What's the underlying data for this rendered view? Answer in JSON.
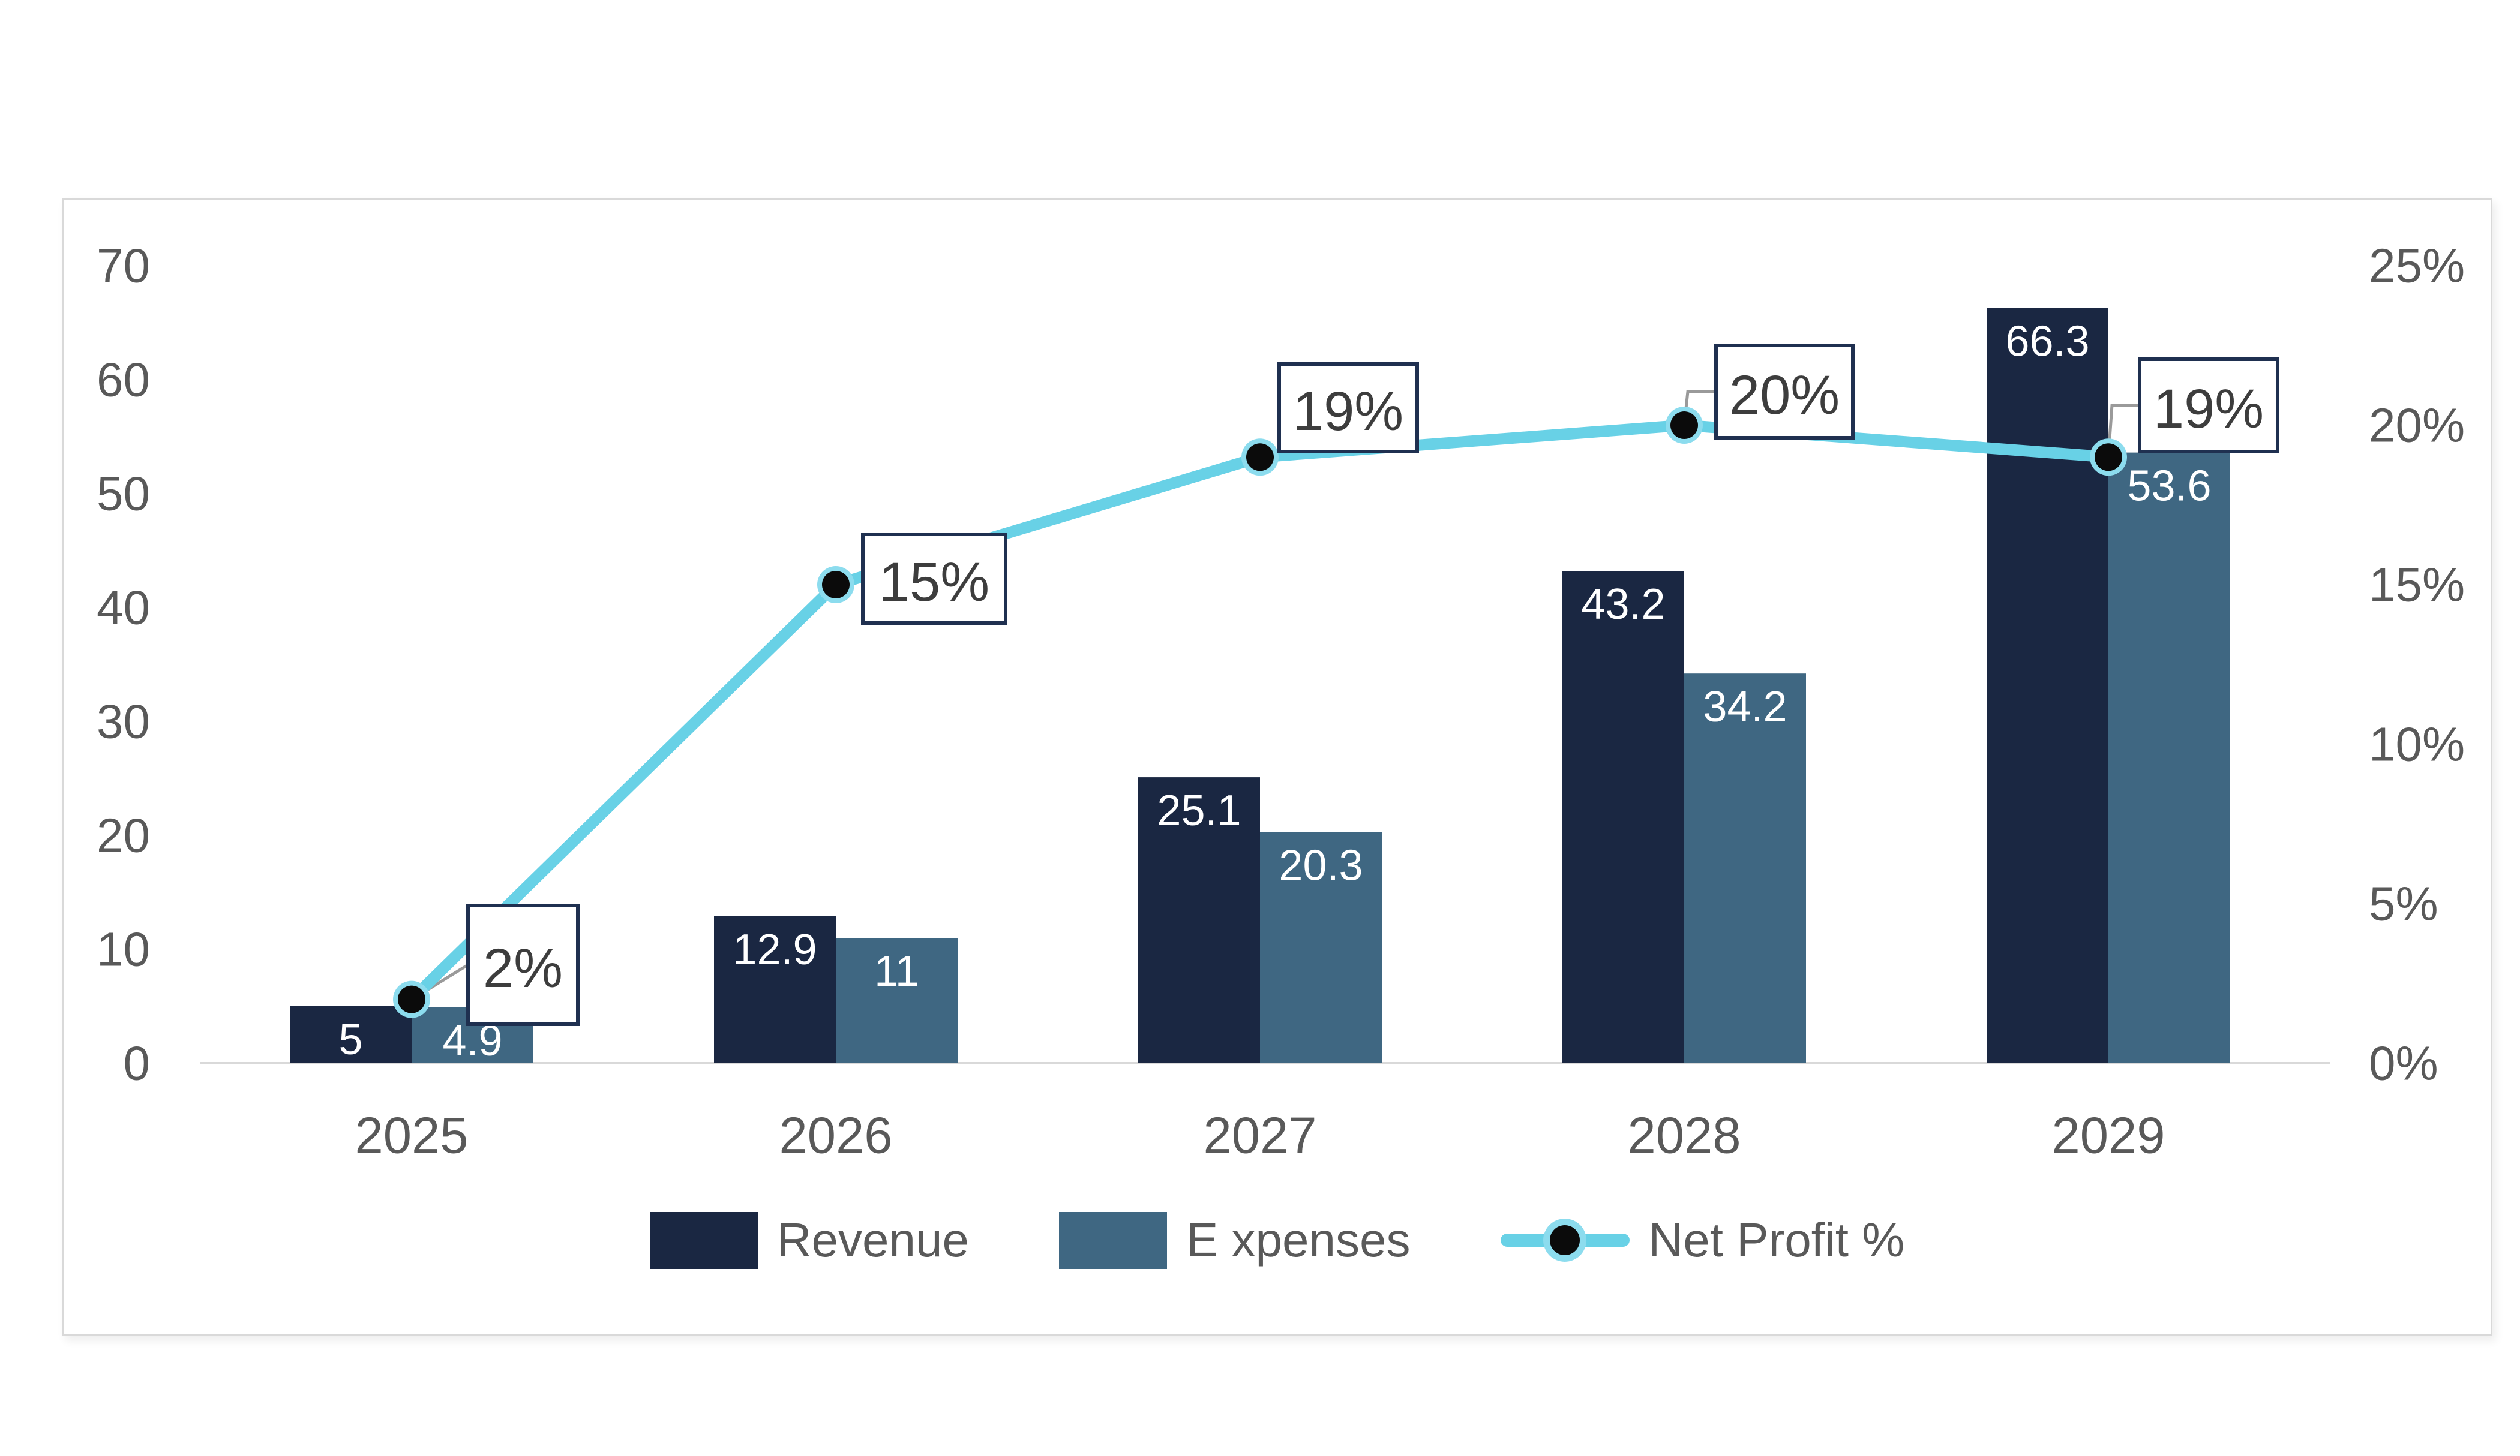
{
  "chart_data": {
    "type": "combo",
    "title": "",
    "categories": [
      "2025",
      "2026",
      "2027",
      "2028",
      "2029"
    ],
    "series": [
      {
        "id": "revenue",
        "name": "Revenue",
        "type": "bar",
        "axis": "left",
        "color": "#1A2742",
        "values": [
          5,
          12.9,
          25.1,
          43.2,
          66.3
        ],
        "data_labels": [
          "5",
          "12.9",
          "25.1",
          "43.2",
          "66.3"
        ]
      },
      {
        "id": "expenses",
        "name": "E xpenses",
        "type": "bar",
        "axis": "left",
        "color": "#3F6782",
        "values": [
          4.9,
          11,
          20.3,
          34.2,
          53.6
        ],
        "data_labels": [
          "4.9",
          "11",
          "20.3",
          "34.2",
          "53.6"
        ]
      },
      {
        "id": "net-profit",
        "name": "Net Profit %",
        "type": "line",
        "axis": "right",
        "color": "#68D1E6",
        "marker_color": "#0B0B0B",
        "values": [
          2,
          15,
          19,
          20,
          19
        ],
        "data_labels": [
          "2%",
          "15%",
          "19%",
          "20%",
          "19%"
        ]
      }
    ],
    "left_axis": {
      "min": 0,
      "max": 70,
      "ticks": [
        "70",
        "60",
        "50",
        "40",
        "30",
        "20",
        "10",
        "0"
      ]
    },
    "right_axis": {
      "min": 0,
      "max": 25,
      "ticks": [
        "25%",
        "20%",
        "15%",
        "10%",
        "5%",
        "0%"
      ]
    },
    "legend": {
      "position": "bottom"
    },
    "grid": false,
    "colors": {
      "axis_line": "#D9D9D9",
      "tick_text": "#595959",
      "category_text": "#595959",
      "bar_label_text": "#FFFFFF",
      "callout_border": "#1F3050",
      "callout_fill": "#FFFFFF",
      "callout_text": "#3D3D3D",
      "leader_line": "#9A9A9A",
      "card_border": "#D9D9D9",
      "marker_halo": "#8CDCEE",
      "legend_text": "#595959"
    }
  }
}
